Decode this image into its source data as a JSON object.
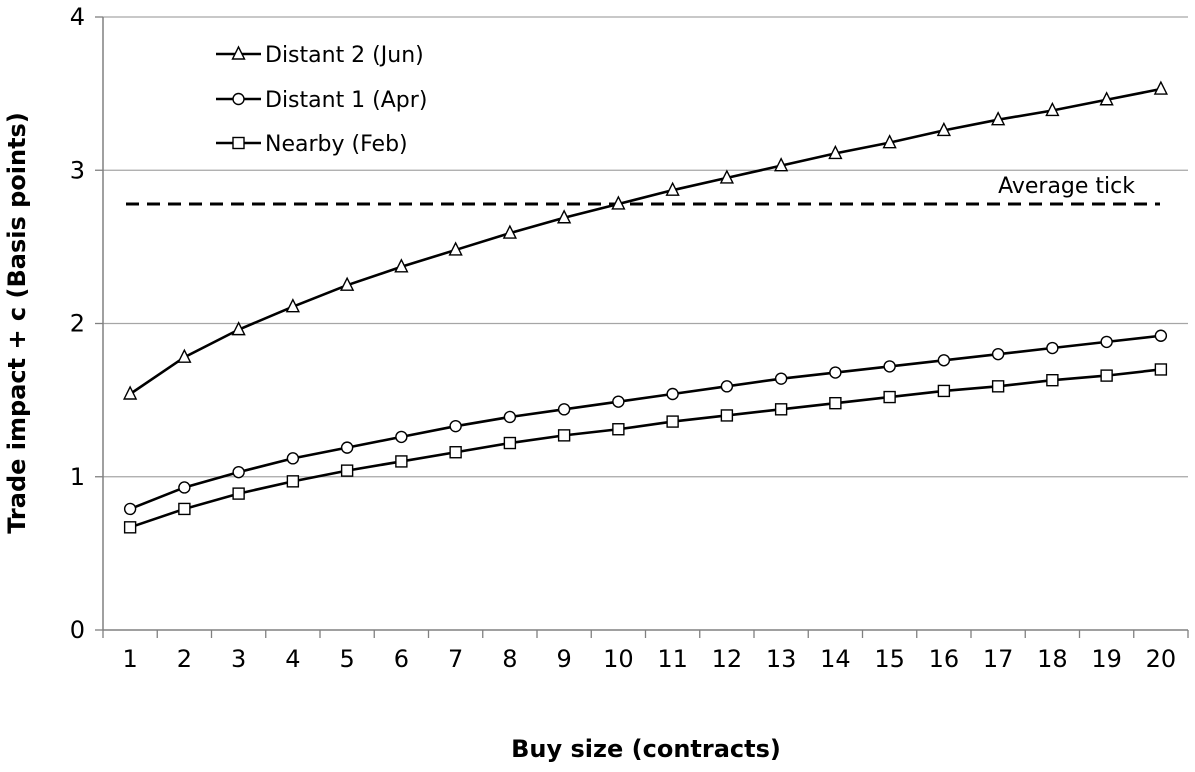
{
  "chart_data": {
    "type": "line",
    "xlabel": "Buy size (contracts)",
    "ylabel": "Trade impact + c (Basis points)",
    "categories": [
      "1",
      "2",
      "3",
      "4",
      "5",
      "6",
      "7",
      "8",
      "9",
      "10",
      "11",
      "12",
      "13",
      "14",
      "15",
      "16",
      "17",
      "18",
      "19",
      "20"
    ],
    "ylim": [
      0,
      4
    ],
    "yticks": [
      "0",
      "1",
      "2",
      "3",
      "4"
    ],
    "grid": true,
    "legend_position": "top-left",
    "series": [
      {
        "name": "Distant 2 (Jun)",
        "marker": "triangle",
        "color": "#000000",
        "values": [
          1.54,
          1.78,
          1.96,
          2.11,
          2.25,
          2.37,
          2.48,
          2.59,
          2.69,
          2.78,
          2.87,
          2.95,
          3.03,
          3.11,
          3.18,
          3.26,
          3.33,
          3.39,
          3.46,
          3.53
        ]
      },
      {
        "name": "Distant 1 (Apr)",
        "marker": "circle",
        "color": "#000000",
        "values": [
          0.79,
          0.93,
          1.03,
          1.12,
          1.19,
          1.26,
          1.33,
          1.39,
          1.44,
          1.49,
          1.54,
          1.59,
          1.64,
          1.68,
          1.72,
          1.76,
          1.8,
          1.84,
          1.88,
          1.92
        ]
      },
      {
        "name": "Nearby (Feb)",
        "marker": "square",
        "color": "#000000",
        "values": [
          0.67,
          0.79,
          0.89,
          0.97,
          1.04,
          1.1,
          1.16,
          1.22,
          1.27,
          1.31,
          1.36,
          1.4,
          1.44,
          1.48,
          1.52,
          1.56,
          1.59,
          1.63,
          1.66,
          1.7
        ]
      }
    ],
    "reference_line": {
      "label": "Average tick",
      "value": 2.78,
      "style": "dashed"
    }
  }
}
